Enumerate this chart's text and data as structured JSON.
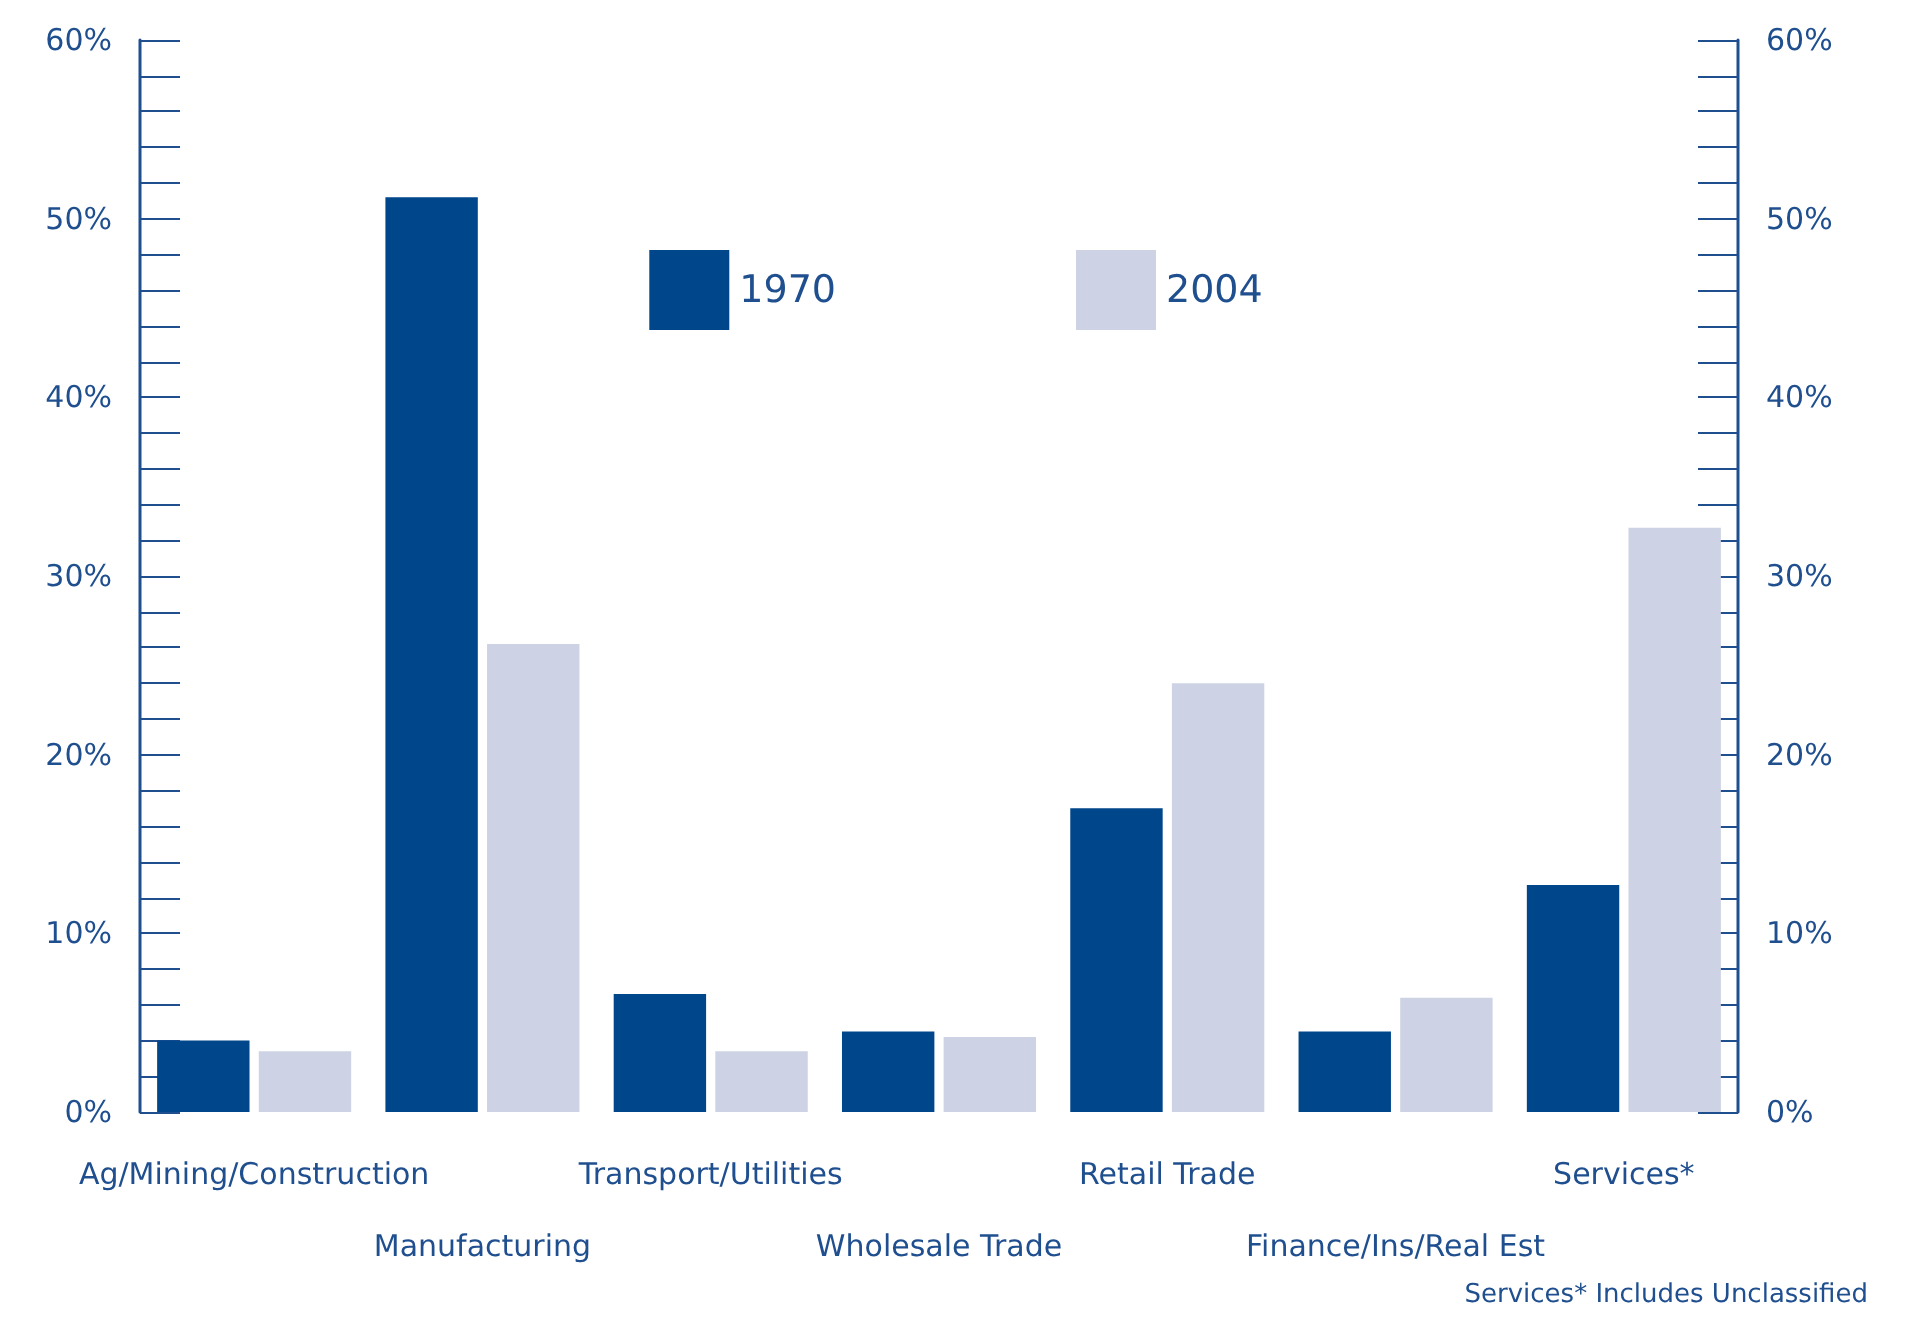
{
  "chart_data": {
    "type": "bar",
    "categories": [
      "Ag/Mining/Construction",
      "Manufacturing",
      "Transport/Utilities",
      "Wholesale Trade",
      "Retail Trade",
      "Finance/Ins/Real Est",
      "Services*"
    ],
    "series": [
      {
        "name": "1970",
        "color": "#00468b",
        "values": [
          4.0,
          51.2,
          6.6,
          4.5,
          17.0,
          4.5,
          12.7
        ]
      },
      {
        "name": "2004",
        "color": "#cdd3e4",
        "values": [
          3.4,
          26.2,
          3.4,
          4.2,
          24.0,
          6.4,
          32.7
        ]
      }
    ],
    "ylim": [
      0,
      60
    ],
    "yticks": [
      {
        "value": 0,
        "label": "0%"
      },
      {
        "value": 10,
        "label": "10%"
      },
      {
        "value": 20,
        "label": "20%"
      },
      {
        "value": 30,
        "label": "30%"
      },
      {
        "value": 40,
        "label": "40%"
      },
      {
        "value": 50,
        "label": "50%"
      },
      {
        "value": 60,
        "label": "60%"
      }
    ],
    "y2lim": [
      0,
      60
    ],
    "y2ticks": [
      {
        "value": 0,
        "label": "0%"
      },
      {
        "value": 10,
        "label": "10%"
      },
      {
        "value": 20,
        "label": "20%"
      },
      {
        "value": 30,
        "label": "30%"
      },
      {
        "value": 40,
        "label": "40%"
      },
      {
        "value": 50,
        "label": "50%"
      },
      {
        "value": 60,
        "label": "60%"
      }
    ],
    "grid": false,
    "legend": "top",
    "annotations": [
      "Services* Includes Unclassified"
    ]
  }
}
